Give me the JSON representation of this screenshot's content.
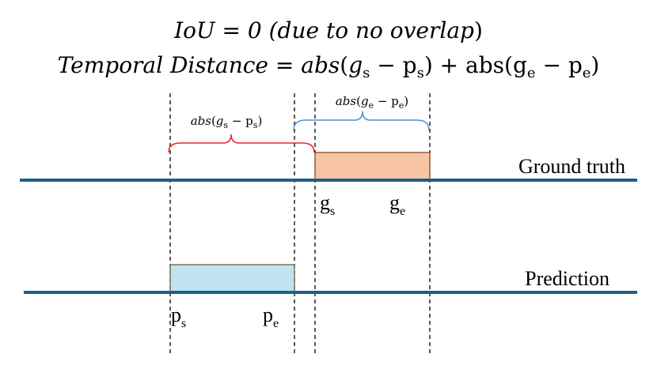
{
  "title": {
    "line1": {
      "prefix": "IoU = 0 (",
      "italic": "due to no overlap",
      "suffix": ")"
    },
    "line2": {
      "lhs": "Temporal Distance = ",
      "abs_italic": "abs",
      "abs_upright": "abs",
      "open": "(",
      "close": ")",
      "minus": " − ",
      "plus": " + "
    }
  },
  "braces": {
    "red": {
      "label_fn": "abs",
      "a": "g",
      "a_sub": "s",
      "b": "p",
      "b_sub": "s",
      "color": "#e8262a"
    },
    "blue": {
      "label_fn": "abs",
      "a": "g",
      "a_sub": "e",
      "b": "p",
      "b_sub": "e",
      "color": "#4a90d9"
    }
  },
  "rows": {
    "ground_truth": {
      "label": "Ground truth",
      "fill": "#f7c4a6",
      "stroke": "#8a4b2a"
    },
    "prediction": {
      "label": "Prediction",
      "fill": "#bfe3f3",
      "stroke": "#7a5a3a"
    }
  },
  "ticks": {
    "gs": {
      "base": "g",
      "sub": "s"
    },
    "ge": {
      "base": "g",
      "sub": "e"
    },
    "ps": {
      "base": "p",
      "sub": "s"
    },
    "pe": {
      "base": "p",
      "sub": "e"
    }
  },
  "colors": {
    "baseline": "#1f5f84",
    "dashed": "#000000"
  }
}
